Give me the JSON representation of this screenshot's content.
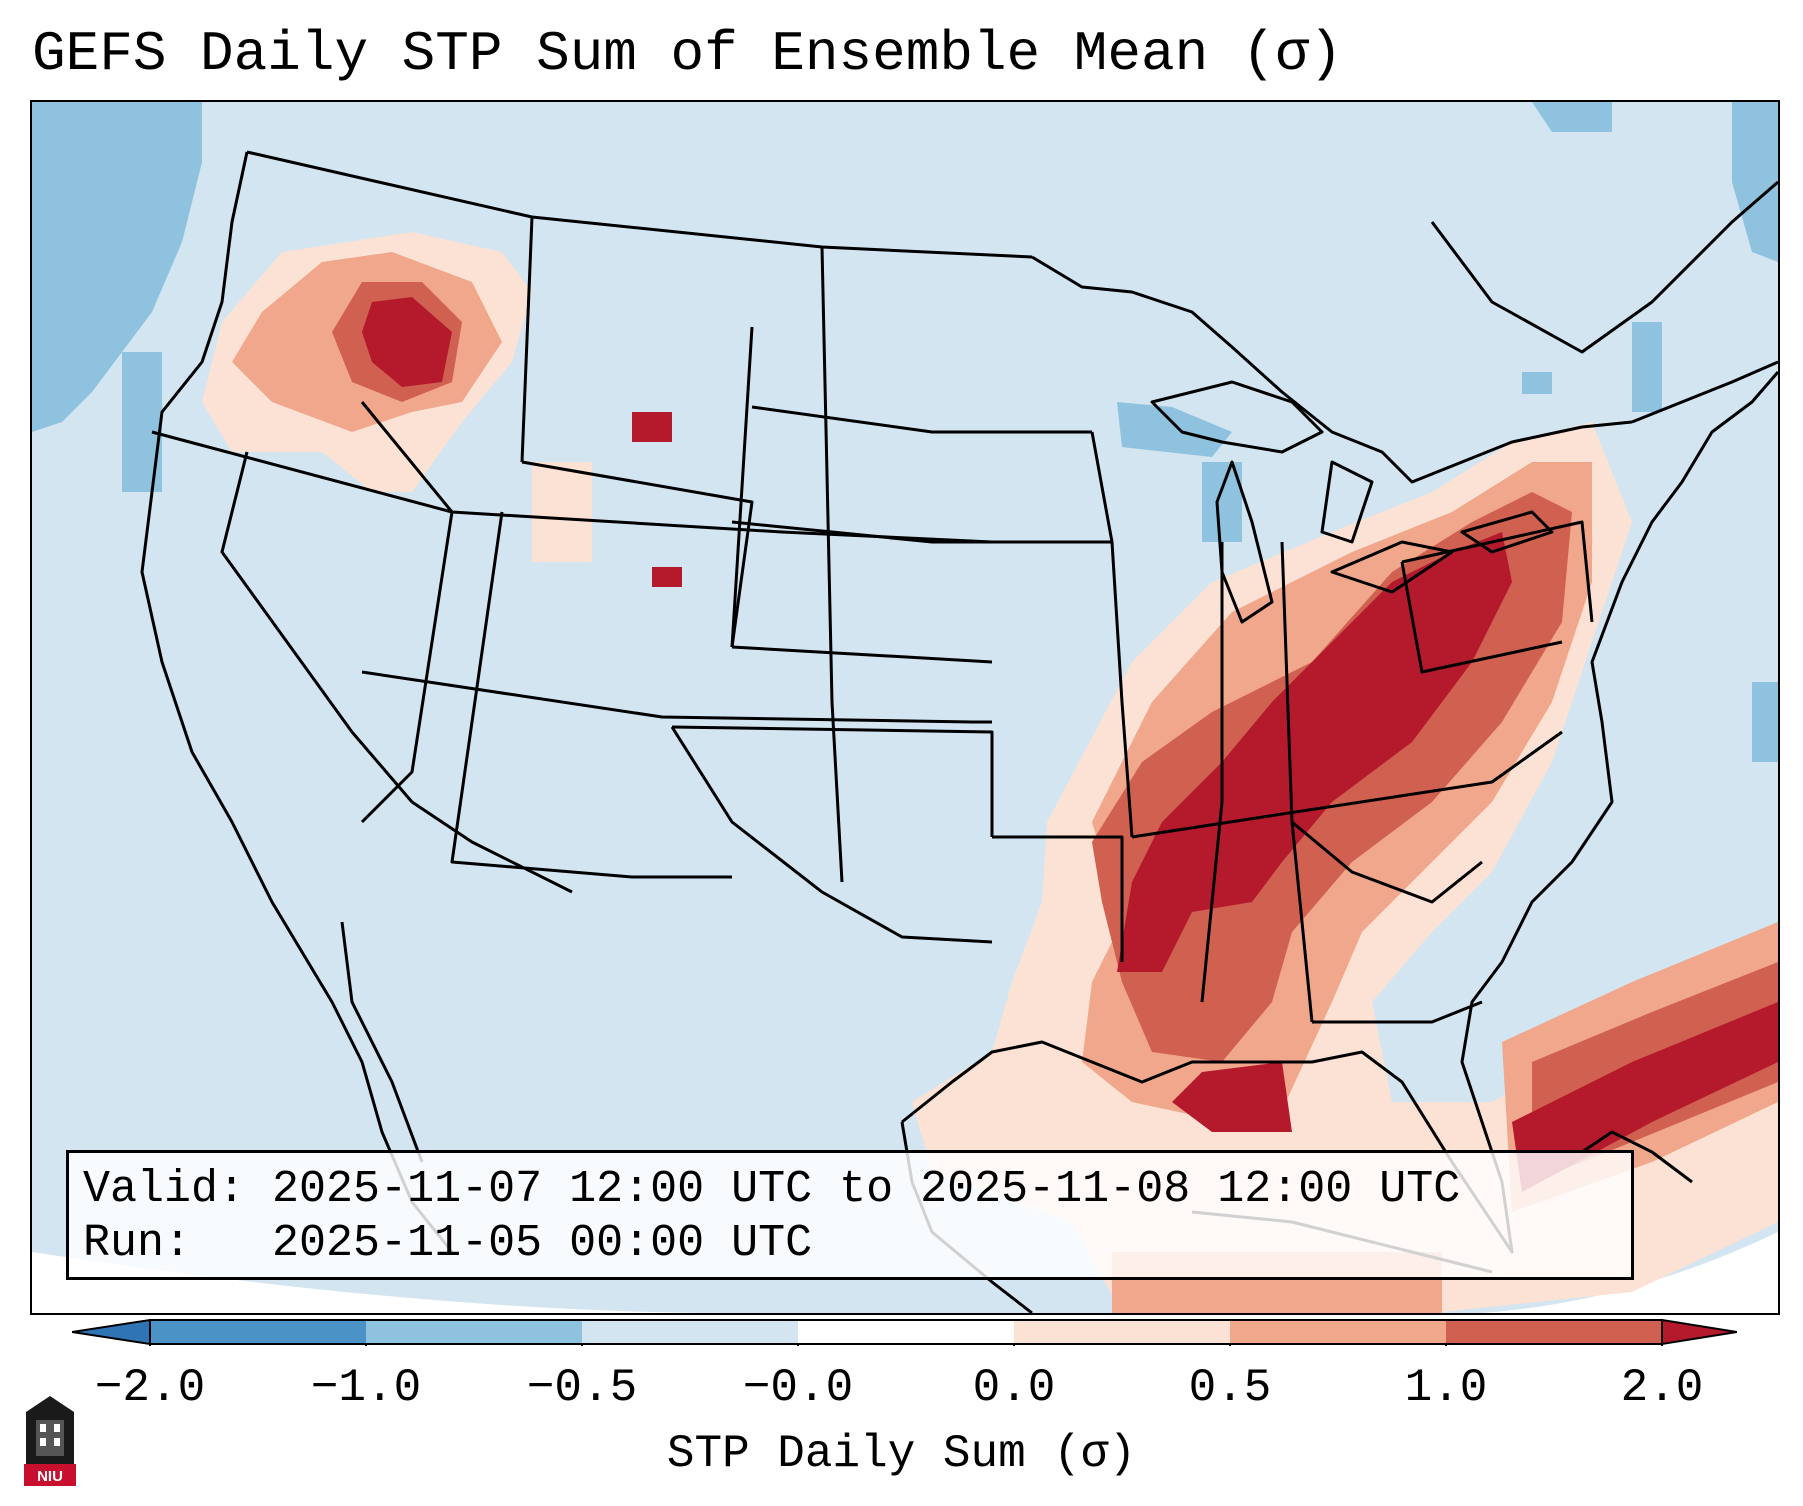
{
  "title": "GEFS Daily STP Sum of Ensemble Mean (σ)",
  "info": {
    "valid_label": "Valid:",
    "valid_value": "2025-11-07 12:00 UTC to 2025-11-08 12:00 UTC",
    "run_label": "Run:",
    "run_value": "2025-11-05 00:00 UTC"
  },
  "colorbar": {
    "label": "STP Daily Sum (σ)",
    "ticks": [
      "−2.0",
      "−1.0",
      "−0.5",
      "−0.0",
      "0.0",
      "0.5",
      "1.0",
      "2.0"
    ],
    "colors": [
      "#2f74b5",
      "#4b93c7",
      "#8fc2df",
      "#d2e5f1",
      "#fbe2d4",
      "#f5b9a0",
      "#e28872",
      "#d0604f",
      "#b5192c"
    ],
    "bins": [
      {
        "from": -2.0,
        "to": -1.0,
        "color": "#4b93c7"
      },
      {
        "from": -1.0,
        "to": -0.5,
        "color": "#8fc2df"
      },
      {
        "from": -0.5,
        "to": -0.0,
        "color": "#d2e5f1"
      },
      {
        "from": -0.0,
        "to": 0.0,
        "color": "#ffffff"
      },
      {
        "from": 0.0,
        "to": 0.5,
        "color": "#fbe2d4"
      },
      {
        "from": 0.5,
        "to": 1.0,
        "color": "#f0a78c"
      },
      {
        "from": 1.0,
        "to": 2.0,
        "color": "#d0604f"
      }
    ],
    "under_color": "#2f74b5",
    "over_color": "#b5192c"
  },
  "map": {
    "background_color": "#d2e5f1",
    "region": "Contiguous United States",
    "max_anomaly_region": "Lower Mississippi and Ohio Valleys"
  },
  "logo": {
    "text": "NIU"
  }
}
